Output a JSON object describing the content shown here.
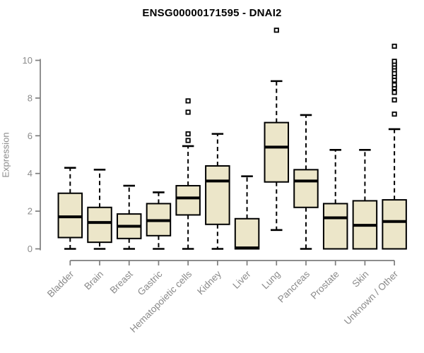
{
  "title": "ENSG00000171595 - DNAI2",
  "colors": {
    "background": "#ffffff",
    "title_text": "#000000",
    "axis_line": "#7d7d7d",
    "axis_text": "#8a8a8a",
    "box_fill": "#ece6c9",
    "box_border": "#000000",
    "median_line": "#000000",
    "whisker": "#000000",
    "outlier_fill": "#ffffff",
    "outlier_border": "#000000"
  },
  "chart_data": {
    "type": "boxplot",
    "title": "ENSG00000171595 - DNAI2",
    "xlabel": "",
    "ylabel": "Expression",
    "ylim": [
      0,
      10
    ],
    "yticks": [
      0,
      2,
      4,
      6,
      8,
      10
    ],
    "grid": false,
    "legend": false,
    "x_tick_rotation_deg": 45,
    "categories": [
      "Bladder",
      "Brain",
      "Breast",
      "Gastric",
      "Hematopoietic cells",
      "Kidney",
      "Liver",
      "Lung",
      "Pancreas",
      "Prostate",
      "Skin",
      "Unknown / Other"
    ],
    "boxes": [
      {
        "category": "Bladder",
        "whisker_low": 0,
        "q1": 0.6,
        "median": 1.7,
        "q3": 2.95,
        "whisker_high": 4.3,
        "outliers": []
      },
      {
        "category": "Brain",
        "whisker_low": 0,
        "q1": 0.35,
        "median": 1.4,
        "q3": 2.2,
        "whisker_high": 4.2,
        "outliers": []
      },
      {
        "category": "Breast",
        "whisker_low": 0,
        "q1": 0.55,
        "median": 1.2,
        "q3": 1.85,
        "whisker_high": 3.35,
        "outliers": []
      },
      {
        "category": "Gastric",
        "whisker_low": 0,
        "q1": 0.7,
        "median": 1.5,
        "q3": 2.4,
        "whisker_high": 3.0,
        "outliers": []
      },
      {
        "category": "Hematopoietic cells",
        "whisker_low": 0,
        "q1": 1.8,
        "median": 2.7,
        "q3": 3.35,
        "whisker_high": 5.45,
        "outliers": [
          5.75,
          6.1,
          7.25,
          7.85
        ]
      },
      {
        "category": "Kidney",
        "whisker_low": 0,
        "q1": 1.3,
        "median": 3.6,
        "q3": 4.4,
        "whisker_high": 6.1,
        "outliers": []
      },
      {
        "category": "Liver",
        "whisker_low": 0,
        "q1": 0,
        "median": 0.05,
        "q3": 1.6,
        "whisker_high": 3.85,
        "outliers": []
      },
      {
        "category": "Lung",
        "whisker_low": 1.0,
        "q1": 3.55,
        "median": 5.4,
        "q3": 6.7,
        "whisker_high": 8.9,
        "outliers": [
          11.6
        ]
      },
      {
        "category": "Pancreas",
        "whisker_low": 0,
        "q1": 2.2,
        "median": 3.6,
        "q3": 4.2,
        "whisker_high": 7.1,
        "outliers": []
      },
      {
        "category": "Prostate",
        "whisker_low": 0,
        "q1": 0,
        "median": 1.65,
        "q3": 2.4,
        "whisker_high": 5.25,
        "outliers": []
      },
      {
        "category": "Skin",
        "whisker_low": 0,
        "q1": 0,
        "median": 1.25,
        "q3": 2.55,
        "whisker_high": 5.25,
        "outliers": []
      },
      {
        "category": "Unknown / Other",
        "whisker_low": 0,
        "q1": 0,
        "median": 1.45,
        "q3": 2.6,
        "whisker_high": 6.35,
        "outliers": [
          7.15,
          7.9,
          8.3,
          8.55,
          8.7,
          8.95,
          9.15,
          9.3,
          9.5,
          9.65,
          9.8,
          9.95,
          10.75
        ]
      }
    ]
  }
}
